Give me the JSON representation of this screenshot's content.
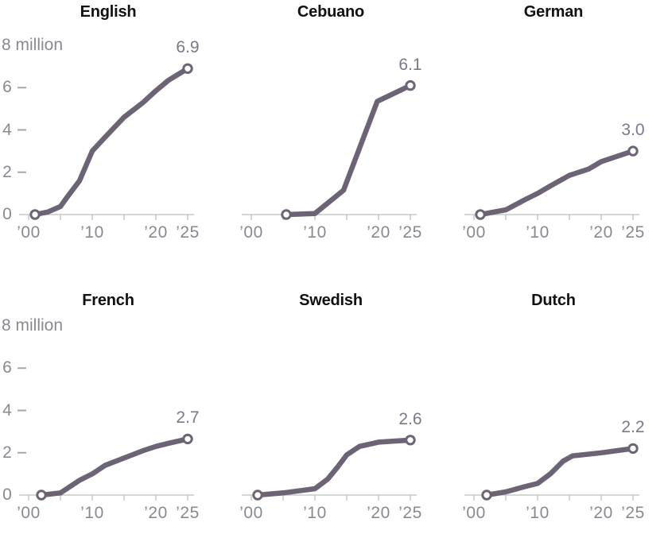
{
  "axis": {
    "unit_label": "8 million",
    "x_tick_labels": [
      {
        "year": 2000,
        "label": "’00"
      },
      {
        "year": 2010,
        "label": "’10"
      },
      {
        "year": 2020,
        "label": "’20"
      },
      {
        "year": 2025,
        "label": "’25"
      }
    ],
    "x_tick_years": [
      2000,
      2005,
      2010,
      2015,
      2020,
      2025
    ],
    "y_tick_values": [
      0,
      2,
      4,
      6
    ],
    "y_dash_values": [
      2,
      4,
      6
    ],
    "y_max": 8,
    "xlim": [
      2000,
      2025
    ],
    "ylim": [
      0,
      8
    ],
    "grid": false
  },
  "colors": {
    "line": "#6c6375",
    "marker_fill": "#ffffff",
    "value_label": "#7f7689",
    "axis_label": "#8a8890",
    "axis_line": "#c9c9c9",
    "tick_dash": "#a7a7a7",
    "title": "#111111"
  },
  "chart_data": [
    {
      "type": "line",
      "title": "English",
      "end_label": "6.9",
      "show_y_axis": true,
      "x": [
        2001,
        2003,
        2005,
        2006,
        2008,
        2010,
        2012,
        2015,
        2018,
        2020,
        2022,
        2025
      ],
      "y": [
        0,
        0.12,
        0.38,
        0.8,
        1.6,
        3.0,
        3.65,
        4.6,
        5.3,
        5.85,
        6.35,
        6.9
      ]
    },
    {
      "type": "line",
      "title": "Cebuano",
      "end_label": "6.1",
      "show_y_axis": false,
      "x": [
        2005.5,
        2010,
        2014.5,
        2019.8,
        2025
      ],
      "y": [
        0,
        0.05,
        1.15,
        5.35,
        6.1
      ]
    },
    {
      "type": "line",
      "title": "German",
      "end_label": "3.0",
      "show_y_axis": false,
      "x": [
        2001,
        2005,
        2008,
        2010,
        2012,
        2015,
        2018,
        2020,
        2022,
        2025
      ],
      "y": [
        0,
        0.22,
        0.7,
        1.0,
        1.35,
        1.85,
        2.15,
        2.5,
        2.7,
        3.0
      ]
    },
    {
      "type": "line",
      "title": "French",
      "end_label": "2.7",
      "show_y_axis": true,
      "x": [
        2002,
        2005,
        2008,
        2010,
        2012,
        2015,
        2018,
        2020,
        2022,
        2025
      ],
      "y": [
        0,
        0.1,
        0.7,
        1.0,
        1.4,
        1.75,
        2.1,
        2.3,
        2.45,
        2.65
      ]
    },
    {
      "type": "line",
      "title": "Swedish",
      "end_label": "2.6",
      "show_y_axis": false,
      "x": [
        2001,
        2005,
        2010,
        2012,
        2013.5,
        2015,
        2017,
        2020,
        2025
      ],
      "y": [
        0,
        0.1,
        0.3,
        0.75,
        1.3,
        1.9,
        2.3,
        2.5,
        2.6
      ]
    },
    {
      "type": "line",
      "title": "Dutch",
      "end_label": "2.2",
      "show_y_axis": false,
      "x": [
        2002,
        2005,
        2008,
        2010,
        2012,
        2014,
        2015.5,
        2020,
        2025
      ],
      "y": [
        0,
        0.15,
        0.4,
        0.55,
        1.0,
        1.6,
        1.85,
        2.0,
        2.2
      ]
    }
  ]
}
